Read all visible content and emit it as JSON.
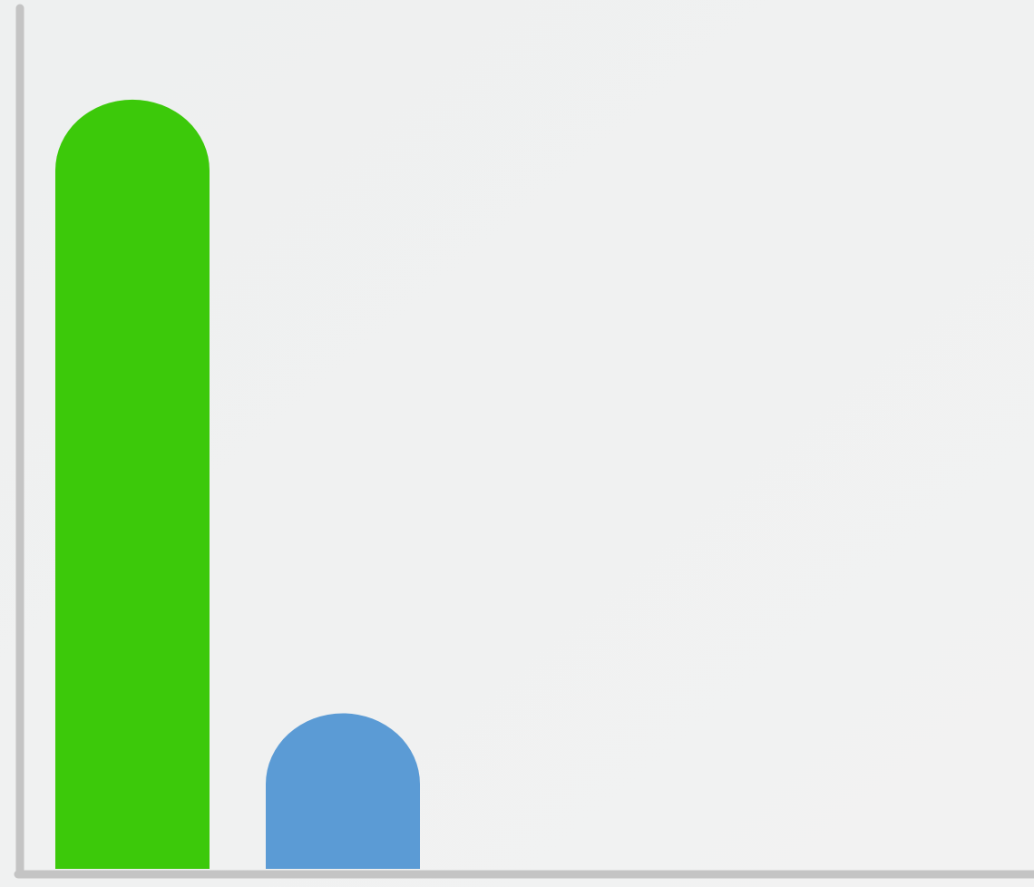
{
  "chart_data": {
    "type": "bar",
    "categories": [
      null,
      null
    ],
    "values": [
      89,
      18
    ],
    "colors": [
      "#3cc90a",
      "#5b9bd5"
    ],
    "ylim": [
      0,
      100
    ]
  }
}
